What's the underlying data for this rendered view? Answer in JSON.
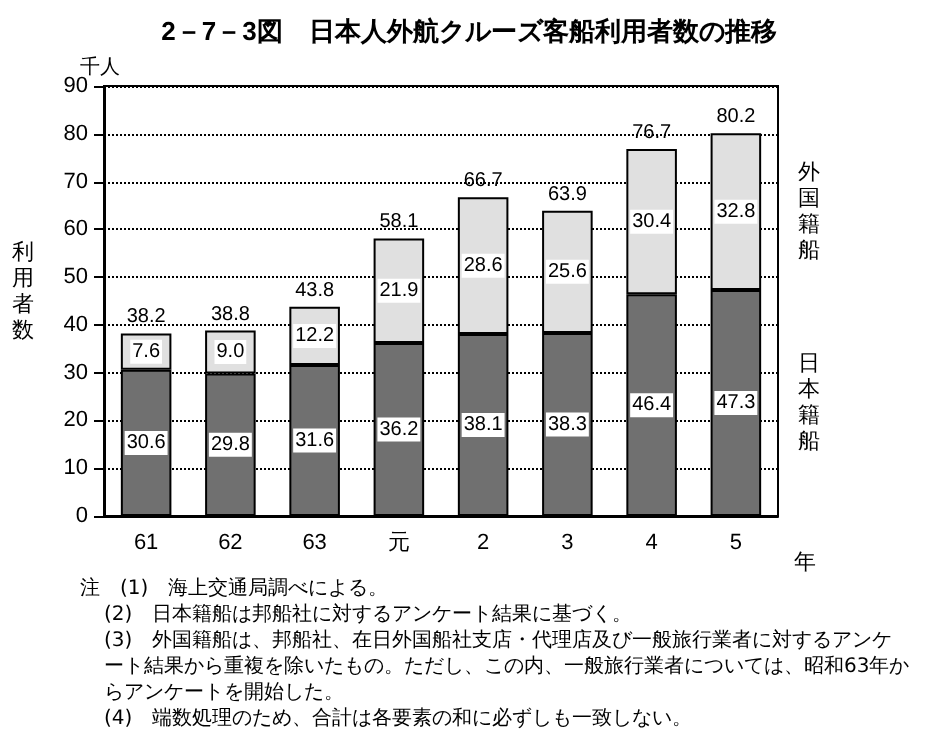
{
  "chart_data": {
    "type": "bar",
    "stacked": true,
    "title": "2－7－3図　日本人外航クルーズ客船利用者数の推移",
    "ylabel": "利用者数",
    "xlabel": "年",
    "categories": [
      "61",
      "62",
      "63",
      "元",
      "2",
      "3",
      "4",
      "5"
    ],
    "series": [
      {
        "name": "日本籍船",
        "color": "#707070",
        "values": [
          30.6,
          29.8,
          31.6,
          36.2,
          38.1,
          38.3,
          46.4,
          47.3
        ]
      },
      {
        "name": "外国籍船",
        "color": "#e0e0e0",
        "values": [
          7.6,
          9.0,
          12.2,
          21.9,
          28.6,
          25.6,
          30.4,
          32.8
        ],
        "value_labels": [
          "7.6",
          "9.0",
          "12.2",
          "21.9",
          "28.6",
          "25.6",
          "30.4",
          "32.8"
        ]
      }
    ],
    "totals": [
      "38.2",
      "38.8",
      "43.8",
      "58.1",
      "66.7",
      "63.9",
      "76.7",
      "80.2"
    ],
    "data_labels": true,
    "ylim": [
      0,
      90
    ],
    "yticks": [
      0,
      10,
      20,
      30,
      40,
      50,
      60,
      70,
      80,
      90
    ],
    "grid": "y",
    "legend": false,
    "annotations": [
      "千人",
      "注　(1)　海上交通局調べによる。",
      "(2)　日本籍船は邦船社に対するアンケート結果に基づく。",
      "(3)　外国籍船は、邦船社、在日外国船社支店・代理店及び一般旅行業者に対するアンケート結果から重複を除いたもの。ただし、この内、一般旅行業者については、昭和63年からアンケートを開始した。",
      "(4)　端数処理のため、合計は各要素の和に必ずしも一致しない。"
    ]
  }
}
